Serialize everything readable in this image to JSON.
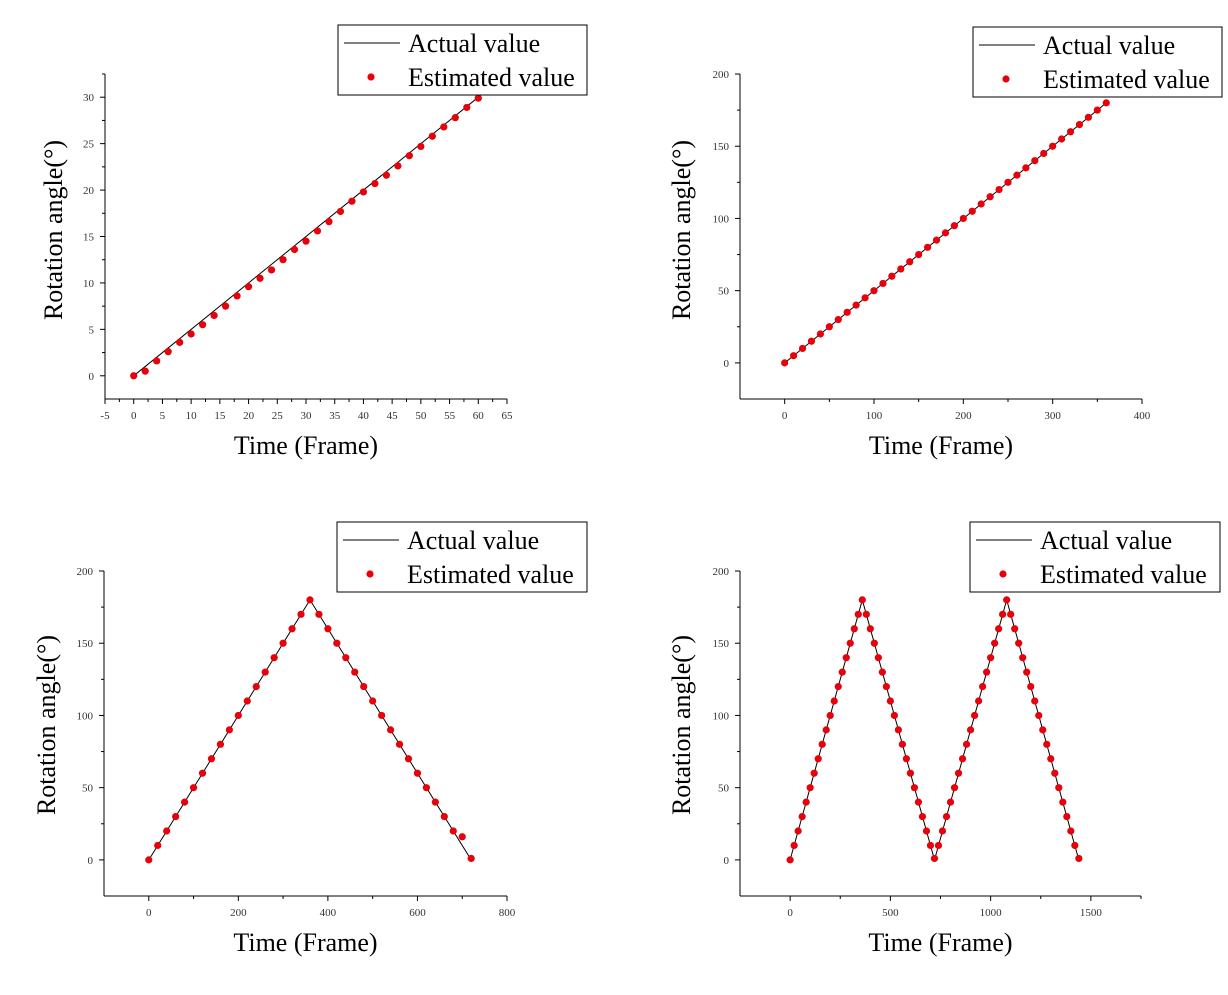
{
  "legend": {
    "actual": "Actual value",
    "estimated": "Estimated value"
  },
  "colors": {
    "actual_line": "#000000",
    "estimated_marker": "#e8000b",
    "axis": "#000000",
    "legend_border": "#000000"
  },
  "chart_data": [
    {
      "type": "line",
      "title": "",
      "xlabel": "Time (Frame)",
      "ylabel": "Rotation angle(°)",
      "xlim": [
        -5,
        65
      ],
      "ylim": [
        -2.5,
        32.5
      ],
      "xticks": [
        -5,
        0,
        5,
        10,
        15,
        20,
        25,
        30,
        35,
        40,
        45,
        50,
        55,
        60,
        65
      ],
      "yticks": [
        0,
        5,
        10,
        15,
        20,
        25,
        30
      ],
      "grid": false,
      "legend_position": "top-right",
      "series": [
        {
          "name": "Actual value",
          "style": "line",
          "x": [
            0,
            60
          ],
          "y": [
            0,
            30
          ]
        },
        {
          "name": "Estimated value",
          "style": "markers",
          "x": [
            0,
            2,
            4,
            6,
            8,
            10,
            12,
            14,
            16,
            18,
            20,
            22,
            24,
            26,
            28,
            30,
            32,
            34,
            36,
            38,
            40,
            42,
            44,
            46,
            48,
            50,
            52,
            54,
            56,
            58,
            60
          ],
          "y": [
            0,
            0.5,
            1.6,
            2.6,
            3.6,
            4.5,
            5.5,
            6.5,
            7.5,
            8.6,
            9.6,
            10.5,
            11.4,
            12.5,
            13.6,
            14.5,
            15.6,
            16.6,
            17.7,
            18.8,
            19.8,
            20.7,
            21.6,
            22.6,
            23.7,
            24.7,
            25.8,
            26.8,
            27.8,
            28.9,
            29.9
          ]
        }
      ]
    },
    {
      "type": "line",
      "title": "",
      "xlabel": "Time (Frame)",
      "ylabel": "Rotation angle(°)",
      "xlim": [
        -50,
        400
      ],
      "ylim": [
        -25,
        200
      ],
      "xticks": [
        0,
        100,
        200,
        300,
        400
      ],
      "yticks": [
        0,
        50,
        100,
        150,
        200
      ],
      "grid": false,
      "legend_position": "top-right",
      "series": [
        {
          "name": "Actual value",
          "style": "line",
          "x": [
            0,
            360
          ],
          "y": [
            0,
            180
          ]
        },
        {
          "name": "Estimated value",
          "style": "markers",
          "x": [
            0,
            10,
            20,
            30,
            40,
            50,
            60,
            70,
            80,
            90,
            100,
            110,
            120,
            130,
            140,
            150,
            160,
            170,
            180,
            190,
            200,
            210,
            220,
            230,
            240,
            250,
            260,
            270,
            280,
            290,
            300,
            310,
            320,
            330,
            340,
            350,
            360
          ],
          "y": [
            0,
            5,
            10,
            15,
            20,
            25,
            30,
            35,
            40,
            45,
            50,
            55,
            60,
            65,
            70,
            75,
            80,
            85,
            90,
            95,
            100,
            105,
            110,
            115,
            120,
            125,
            130,
            135,
            140,
            145,
            150,
            155,
            160,
            165,
            170,
            175,
            180
          ]
        }
      ]
    },
    {
      "type": "line",
      "title": "",
      "xlabel": "Time (Frame)",
      "ylabel": "Rotation angle(°)",
      "xlim": [
        -100,
        800
      ],
      "ylim": [
        -25,
        200
      ],
      "xticks": [
        0,
        200,
        400,
        600,
        800
      ],
      "yticks": [
        0,
        50,
        100,
        150,
        200
      ],
      "grid": false,
      "legend_position": "top-right",
      "series": [
        {
          "name": "Actual value",
          "style": "line",
          "x": [
            0,
            360,
            720
          ],
          "y": [
            0,
            180,
            0
          ]
        },
        {
          "name": "Estimated value",
          "style": "markers",
          "x": [
            0,
            20,
            40,
            60,
            80,
            100,
            120,
            140,
            160,
            180,
            200,
            220,
            240,
            260,
            280,
            300,
            320,
            340,
            360,
            380,
            400,
            420,
            440,
            460,
            480,
            500,
            520,
            540,
            560,
            580,
            600,
            620,
            640,
            660,
            680,
            700,
            720
          ],
          "y": [
            0,
            10,
            20,
            30,
            40,
            50,
            60,
            70,
            80,
            90,
            100,
            110,
            120,
            130,
            140,
            150,
            160,
            170,
            180,
            170,
            160,
            150,
            140,
            130,
            120,
            110,
            100,
            90,
            80,
            70,
            60,
            50,
            40,
            30,
            20,
            16,
            1
          ]
        }
      ]
    },
    {
      "type": "line",
      "title": "",
      "xlabel": "Time (Frame)",
      "ylabel": "Rotation angle(°)",
      "xlim": [
        -250,
        1750
      ],
      "ylim": [
        -25,
        200
      ],
      "xticks": [
        0,
        500,
        1000,
        1500
      ],
      "yticks": [
        0,
        50,
        100,
        150,
        200
      ],
      "grid": false,
      "legend_position": "top-right",
      "series": [
        {
          "name": "Actual value",
          "style": "line",
          "x": [
            0,
            360,
            720,
            1080,
            1440
          ],
          "y": [
            0,
            180,
            0,
            180,
            0
          ]
        },
        {
          "name": "Estimated value",
          "style": "markers",
          "x": [
            0,
            20,
            40,
            60,
            80,
            100,
            120,
            140,
            160,
            180,
            200,
            220,
            240,
            260,
            280,
            300,
            320,
            340,
            360,
            380,
            400,
            420,
            440,
            460,
            480,
            500,
            520,
            540,
            560,
            580,
            600,
            620,
            640,
            660,
            680,
            700,
            720,
            740,
            760,
            780,
            800,
            820,
            840,
            860,
            880,
            900,
            920,
            940,
            960,
            980,
            1000,
            1020,
            1040,
            1060,
            1080,
            1100,
            1120,
            1140,
            1160,
            1180,
            1200,
            1220,
            1240,
            1260,
            1280,
            1300,
            1320,
            1340,
            1360,
            1380,
            1400,
            1420,
            1440
          ],
          "y": [
            0,
            10,
            20,
            30,
            40,
            50,
            60,
            70,
            80,
            90,
            100,
            110,
            120,
            130,
            140,
            150,
            160,
            170,
            180,
            170,
            160,
            150,
            140,
            130,
            120,
            110,
            100,
            90,
            80,
            70,
            60,
            50,
            40,
            30,
            20,
            10,
            1,
            10,
            20,
            30,
            40,
            50,
            60,
            70,
            80,
            90,
            100,
            110,
            120,
            130,
            140,
            150,
            160,
            170,
            180,
            170,
            160,
            150,
            140,
            130,
            120,
            110,
            100,
            90,
            80,
            70,
            60,
            50,
            40,
            30,
            20,
            10,
            1
          ]
        }
      ]
    }
  ]
}
